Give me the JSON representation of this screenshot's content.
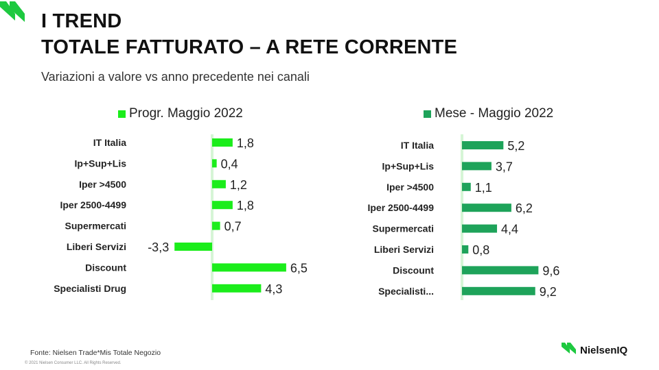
{
  "header": {
    "title_line1": "I TREND",
    "title_line2": "TOTALE FATTURATO – A RETE CORRENTE",
    "subtitle": "Variazioni a valore vs anno precedente nei canali"
  },
  "colors": {
    "left_series": "#1bed1b",
    "right_series": "#1ea35a",
    "zero_line": "#d6f5d6",
    "logo": "#1ec940"
  },
  "chart_data": [
    {
      "type": "bar",
      "orientation": "horizontal",
      "legend_position": "top",
      "categories": [
        "IT Italia",
        "Ip+Sup+Lis",
        "Iper >4500",
        "Iper 2500-4499",
        "Supermercati",
        "Liberi Servizi",
        "Discount",
        "Specialisti Drug"
      ],
      "series": [
        {
          "name": "Progr. Maggio 2022",
          "values": [
            1.8,
            0.4,
            1.2,
            1.8,
            0.7,
            -3.3,
            6.5,
            4.3
          ],
          "labels": [
            "1,8",
            "0,4",
            "1,2",
            "1,8",
            "0,7",
            "-3,3",
            "6,5",
            "4,3"
          ]
        }
      ],
      "xlim": [
        -3.3,
        6.5
      ],
      "grid": false
    },
    {
      "type": "bar",
      "orientation": "horizontal",
      "legend_position": "top",
      "categories": [
        "IT Italia",
        "Ip+Sup+Lis",
        "Iper >4500",
        "Iper 2500-4499",
        "Supermercati",
        "Liberi Servizi",
        "Discount",
        "Specialisti..."
      ],
      "series": [
        {
          "name": "Mese - Maggio 2022",
          "values": [
            5.2,
            3.7,
            1.1,
            6.2,
            4.4,
            0.8,
            9.6,
            9.2
          ],
          "labels": [
            "5,2",
            "3,7",
            "1,1",
            "6,2",
            "4,4",
            "0,8",
            "9,6",
            "9,2"
          ]
        }
      ],
      "xlim": [
        0,
        9.6
      ],
      "grid": false
    }
  ],
  "footer": {
    "source": "Fonte: Nielsen Trade*Mis Totale Negozio",
    "copyright": "© 2021 Nielsen Consumer LLC. All Rights Reserved.",
    "brand": "NielsenIQ"
  }
}
